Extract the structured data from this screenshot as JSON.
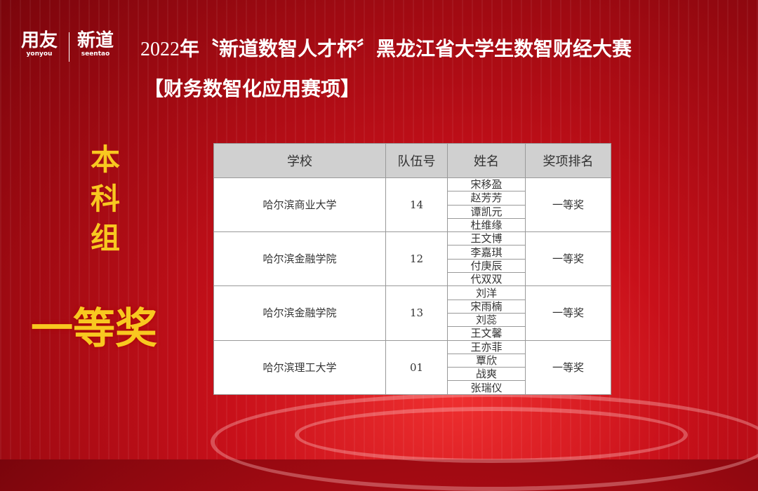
{
  "logos": {
    "yonyou": {
      "cn": "用友",
      "en": "yonyou"
    },
    "seentao": {
      "cn": "新道",
      "en": "seentao"
    }
  },
  "title_year": "2022",
  "title_rest": "年〝新道数智人才杯〞黑龙江省大学生数智财经大赛",
  "subtitle": "【财务数智化应用赛项】",
  "group": "本科组",
  "award": "一等奖",
  "table": {
    "headers": [
      "学校",
      "队伍号",
      "姓名",
      "奖项排名"
    ],
    "rows": [
      {
        "school": "哈尔滨商业大学",
        "team": "14",
        "members": [
          "宋移盈",
          "赵芳芳",
          "谭凯元",
          "杜维缘"
        ],
        "award": "一等奖"
      },
      {
        "school": "哈尔滨金融学院",
        "team": "12",
        "members": [
          "王文博",
          "李嘉琪",
          "付庚辰",
          "代双双"
        ],
        "award": "一等奖"
      },
      {
        "school": "哈尔滨金融学院",
        "team": "13",
        "members": [
          "刘洋",
          "宋雨楠",
          "刘蕊",
          "王文馨"
        ],
        "award": "一等奖"
      },
      {
        "school": "哈尔滨理工大学",
        "team": "01",
        "members": [
          "王亦菲",
          "覃欣",
          "战爽",
          "张瑞仪"
        ],
        "award": "一等奖"
      }
    ]
  }
}
